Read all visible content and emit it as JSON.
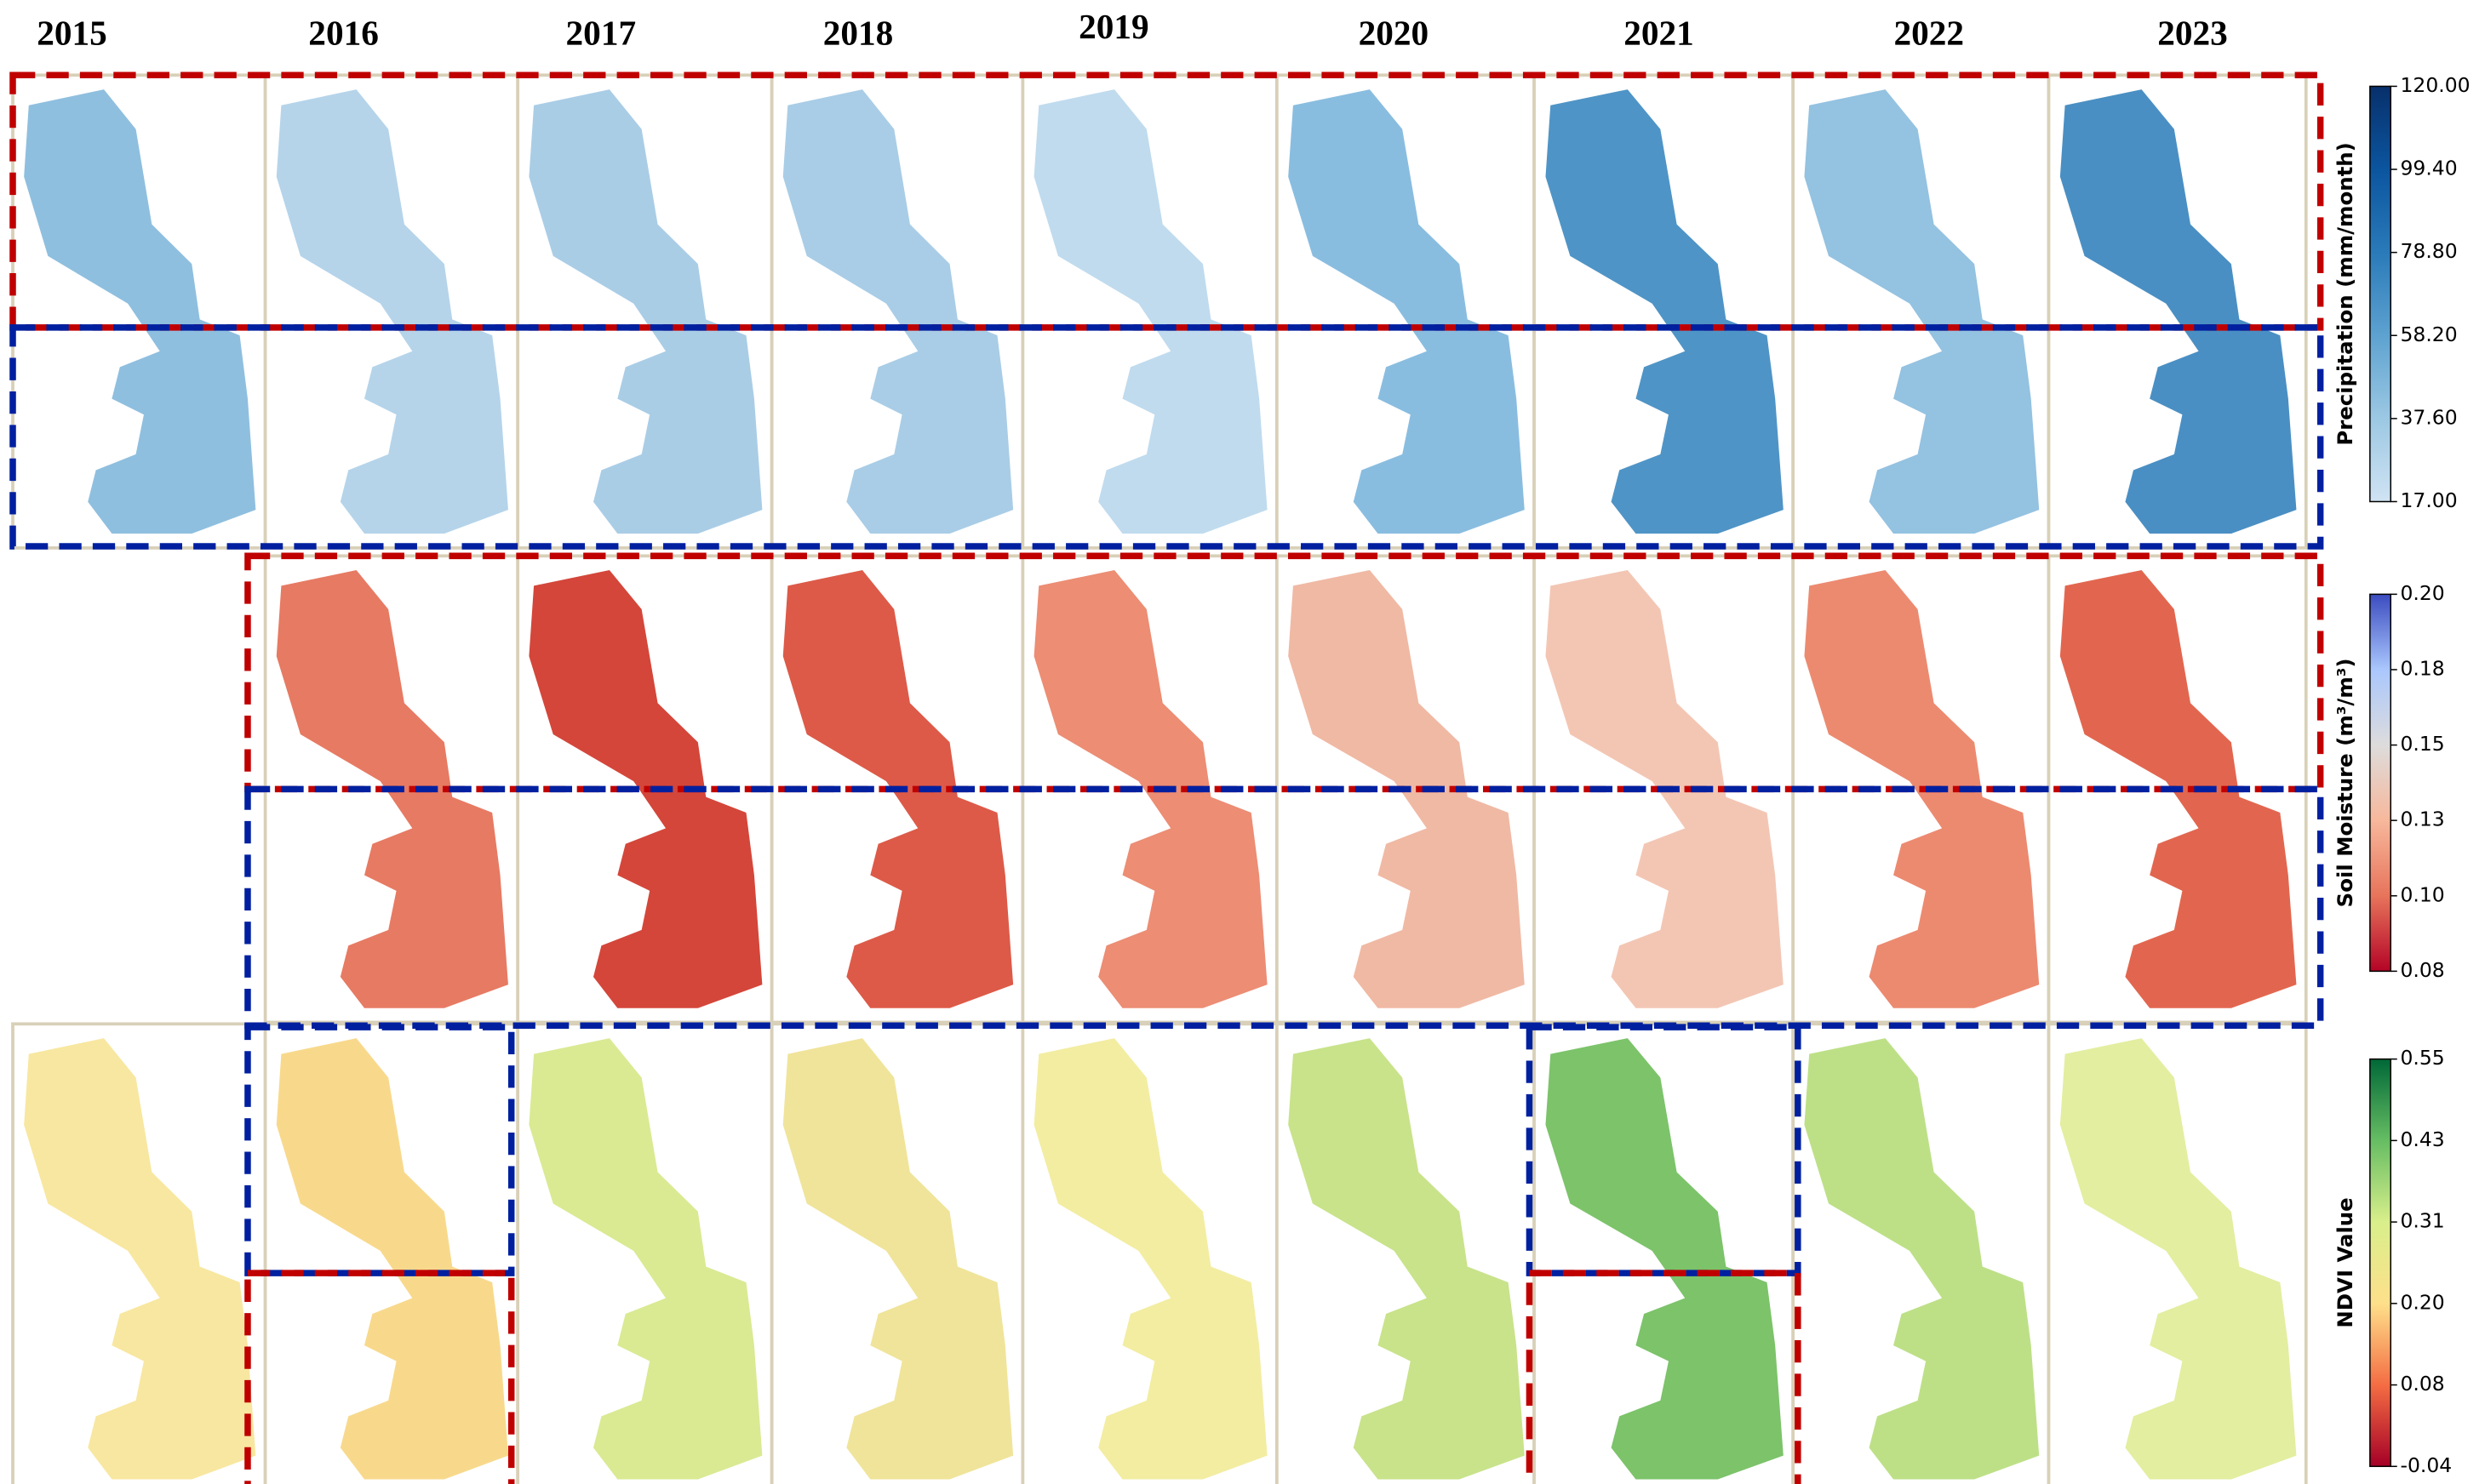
{
  "years": [
    "2015",
    "2016",
    "2017",
    "2018",
    "2019",
    "2020",
    "2021",
    "2022",
    "2023"
  ],
  "colorbars": [
    {
      "label": "Precipitation (mm/month)",
      "lim": [
        17,
        120
      ],
      "ticks": [
        {
          "value": 120,
          "label": "120.00"
        },
        {
          "value": 99.4,
          "label": "99.40"
        },
        {
          "value": 78.8,
          "label": "78.80"
        },
        {
          "value": 58.2,
          "label": "58.20"
        },
        {
          "value": 37.6,
          "label": "37.60"
        },
        {
          "value": 17,
          "label": "17.00"
        }
      ],
      "colors": [
        "#d0e3f3",
        "#9cc8e3",
        "#5da2d0",
        "#2a7ab9",
        "#0b559f",
        "#08306b"
      ]
    },
    {
      "label": "Soil Moisture (m³/m³)",
      "lim": [
        0.08,
        0.2
      ],
      "ticks": [
        {
          "value": 0.2,
          "label": "0.20"
        },
        {
          "value": 0.176,
          "label": "0.18"
        },
        {
          "value": 0.152,
          "label": "0.15"
        },
        {
          "value": 0.128,
          "label": "0.13"
        },
        {
          "value": 0.104,
          "label": "0.10"
        },
        {
          "value": 0.08,
          "label": "0.08"
        }
      ],
      "colors": [
        "#b40426",
        "#e7745b",
        "#f7b89c",
        "#dddcdc",
        "#aac7fd",
        "#3b4cc0"
      ]
    },
    {
      "label": "NDVI Value",
      "lim": [
        -0.04,
        0.55
      ],
      "ticks": [
        {
          "value": 0.55,
          "label": "0.55"
        },
        {
          "value": 0.432,
          "label": "0.43"
        },
        {
          "value": 0.314,
          "label": "0.31"
        },
        {
          "value": 0.196,
          "label": "0.20"
        },
        {
          "value": 0.078,
          "label": "0.08"
        },
        {
          "value": -0.04,
          "label": "-0.04"
        }
      ],
      "colors": [
        "#a50026",
        "#f46d43",
        "#fee08b",
        "#d9ef8b",
        "#66bd63",
        "#006837"
      ]
    }
  ]
}
